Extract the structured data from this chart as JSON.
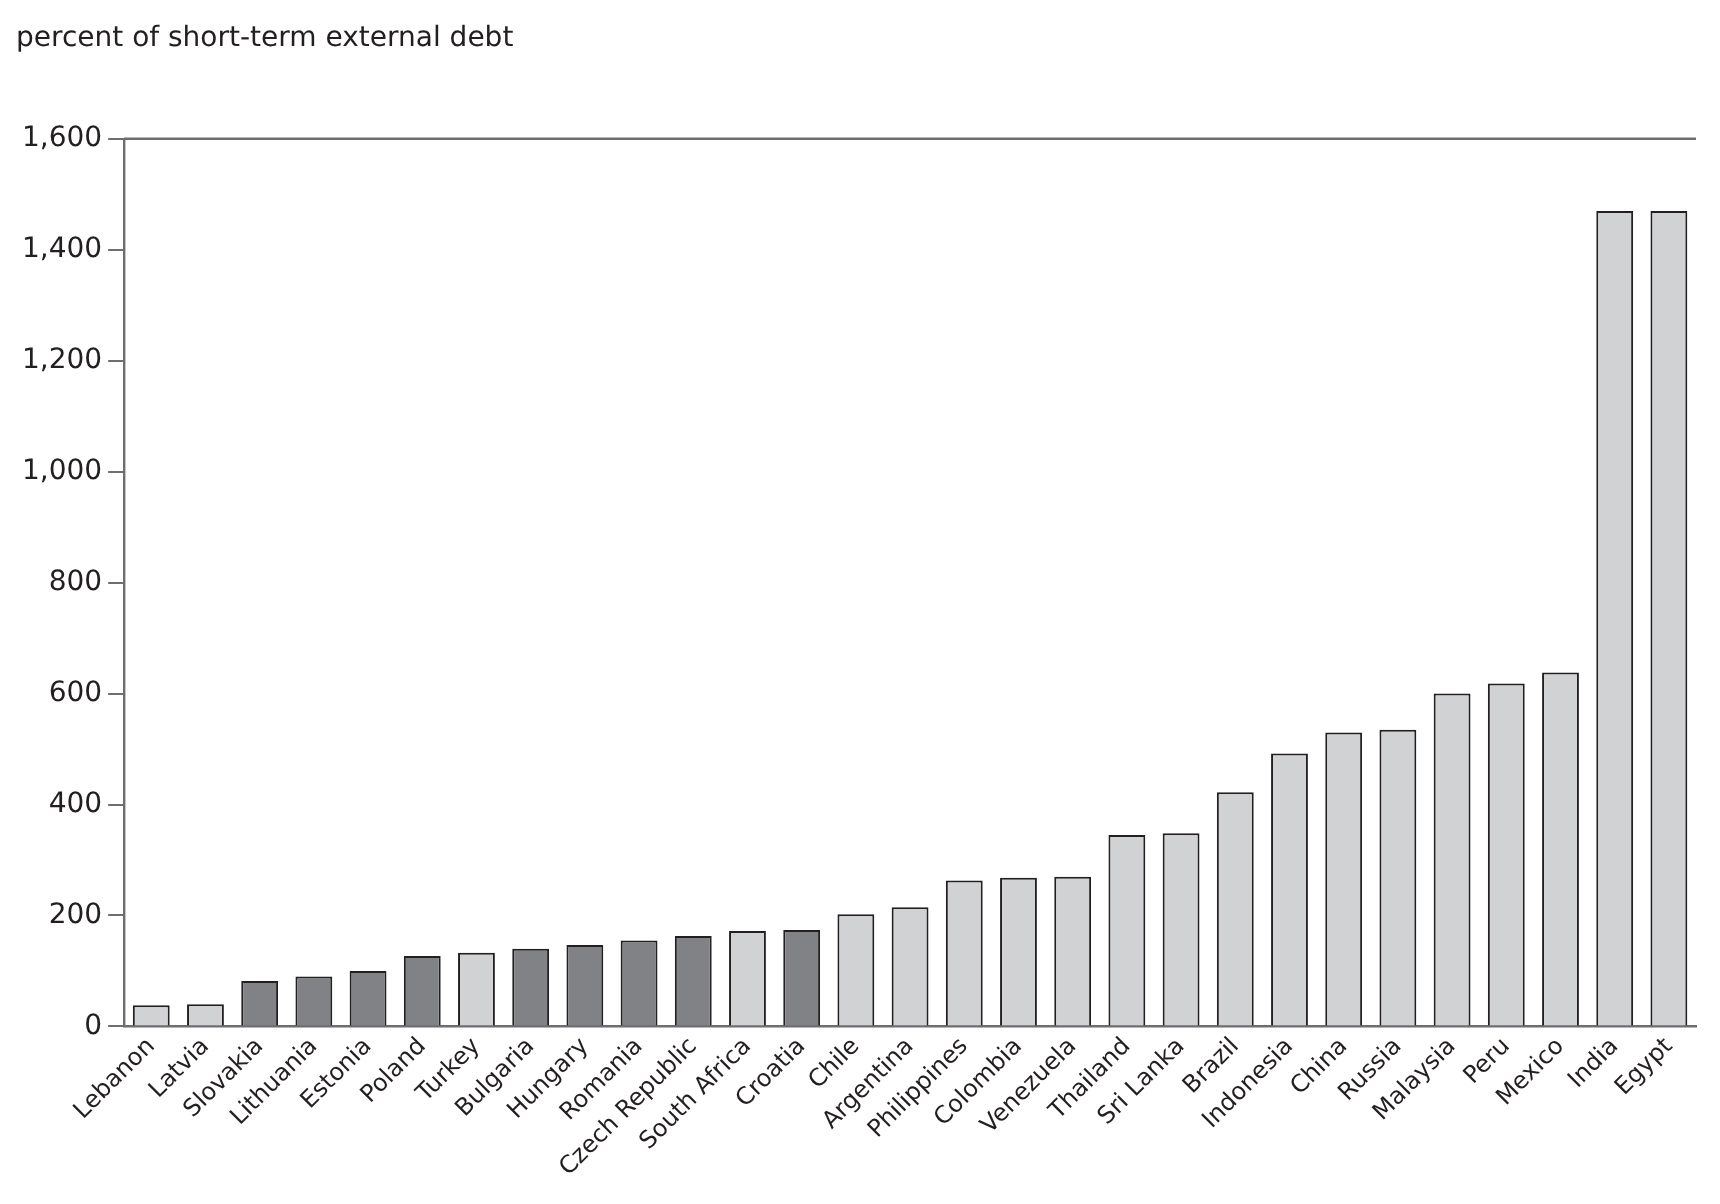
{
  "chart_data": {
    "type": "bar",
    "ylabel": "percent of short-term external debt",
    "categories": [
      "Lebanon",
      "Latvia",
      "Slovakia",
      "Lithuania",
      "Estonia",
      "Poland",
      "Turkey",
      "Bulgaria",
      "Hungary",
      "Romania",
      "Czech Republic",
      "South Africa",
      "Croatia",
      "Chile",
      "Argentina",
      "Philippines",
      "Colombia",
      "Venezuela",
      "Thailand",
      "Sri Lanka",
      "Brazil",
      "Indonesia",
      "China",
      "Russia",
      "Malaysia",
      "Peru",
      "Mexico",
      "India",
      "Egypt"
    ],
    "values": [
      38,
      40,
      82,
      90,
      100,
      127,
      133,
      140,
      147,
      155,
      163,
      172,
      174,
      202,
      215,
      263,
      268,
      270,
      345,
      348,
      422,
      492,
      530,
      535,
      600,
      618,
      638,
      1470,
      1470
    ],
    "colors": [
      "#d1d2d4",
      "#d1d2d4",
      "#808285",
      "#808285",
      "#808285",
      "#808285",
      "#d1d2d4",
      "#808285",
      "#808285",
      "#808285",
      "#808285",
      "#d1d2d4",
      "#808285",
      "#d1d2d4",
      "#d1d2d4",
      "#d1d2d4",
      "#d1d2d4",
      "#d1d2d4",
      "#d1d2d4",
      "#d1d2d4",
      "#d1d2d4",
      "#d1d2d4",
      "#d1d2d4",
      "#d1d2d4",
      "#d1d2d4",
      "#d1d2d4",
      "#d1d2d4",
      "#d1d2d4",
      "#d1d2d4"
    ],
    "ylim": [
      0,
      1600
    ],
    "yticks": [
      0,
      200,
      400,
      600,
      800,
      {
        "value": 1000,
        "label": "1,000"
      },
      {
        "value": 1200,
        "label": "1,200"
      },
      {
        "value": 1400,
        "label": "1,400"
      },
      {
        "value": 1600,
        "label": "1,600"
      }
    ],
    "grid": false,
    "legend": false
  }
}
